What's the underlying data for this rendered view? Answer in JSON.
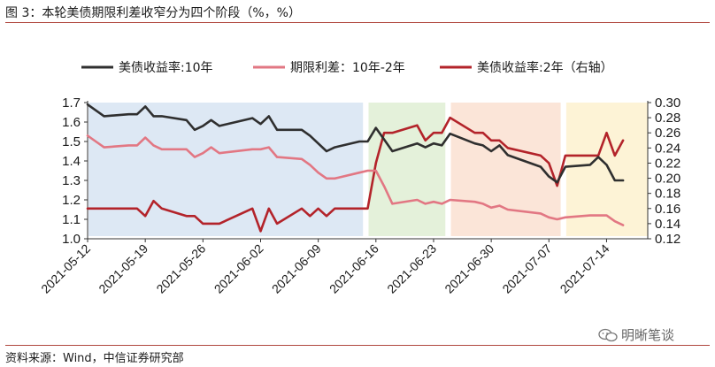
{
  "header": {
    "title": "图 3：本轮美债期限利差收窄分为四个阶段（%，%）"
  },
  "footer": {
    "source": "资料来源：Wind，中信证券研究部",
    "watermark": "明晰笔谈",
    "watermark_icon": "wechat-icon"
  },
  "chart_data": {
    "type": "line",
    "xlabel": "",
    "ylabel": "",
    "x_ticks": [
      "2021-05-12",
      "2021-05-19",
      "2021-05-26",
      "2021-06-02",
      "2021-06-09",
      "2021-06-16",
      "2021-06-23",
      "2021-06-30",
      "2021-07-07",
      "2021-07-14"
    ],
    "ylim_left": [
      1.0,
      1.7
    ],
    "yticks_left": [
      "1.0",
      "1.1",
      "1.2",
      "1.3",
      "1.4",
      "1.5",
      "1.6",
      "1.7"
    ],
    "ylim_right": [
      0.12,
      0.3
    ],
    "yticks_right": [
      "0.12",
      "0.14",
      "0.16",
      "0.18",
      "0.20",
      "0.22",
      "0.24",
      "0.26",
      "0.28",
      "0.30"
    ],
    "legend_position": "top",
    "phases": [
      {
        "start": "2021-05-12",
        "end": "2021-06-14",
        "color": "#dde8f4"
      },
      {
        "start": "2021-06-15",
        "end": "2021-06-24",
        "color": "#e4f1da"
      },
      {
        "start": "2021-06-25",
        "end": "2021-07-08",
        "color": "#fbe5d8"
      },
      {
        "start": "2021-07-09",
        "end": "2021-07-19",
        "color": "#fdf3d6"
      }
    ],
    "series": [
      {
        "name": "美债收益率:10年",
        "axis": "left",
        "color": "#2f2f2f",
        "dates": [
          "2021-05-12",
          "2021-05-13",
          "2021-05-14",
          "2021-05-17",
          "2021-05-18",
          "2021-05-19",
          "2021-05-20",
          "2021-05-21",
          "2021-05-24",
          "2021-05-25",
          "2021-05-26",
          "2021-05-27",
          "2021-05-28",
          "2021-06-01",
          "2021-06-02",
          "2021-06-03",
          "2021-06-04",
          "2021-06-07",
          "2021-06-08",
          "2021-06-09",
          "2021-06-10",
          "2021-06-11",
          "2021-06-14",
          "2021-06-15",
          "2021-06-16",
          "2021-06-17",
          "2021-06-18",
          "2021-06-21",
          "2021-06-22",
          "2021-06-23",
          "2021-06-24",
          "2021-06-25",
          "2021-06-28",
          "2021-06-29",
          "2021-06-30",
          "2021-07-01",
          "2021-07-02",
          "2021-07-06",
          "2021-07-07",
          "2021-07-08",
          "2021-07-09",
          "2021-07-12",
          "2021-07-13",
          "2021-07-14",
          "2021-07-15",
          "2021-07-16"
        ],
        "values": [
          1.69,
          1.66,
          1.63,
          1.64,
          1.64,
          1.68,
          1.63,
          1.63,
          1.61,
          1.56,
          1.58,
          1.61,
          1.58,
          1.62,
          1.59,
          1.63,
          1.56,
          1.56,
          1.53,
          1.49,
          1.45,
          1.47,
          1.5,
          1.5,
          1.57,
          1.51,
          1.45,
          1.49,
          1.47,
          1.49,
          1.48,
          1.54,
          1.49,
          1.48,
          1.45,
          1.48,
          1.43,
          1.37,
          1.32,
          1.29,
          1.37,
          1.38,
          1.42,
          1.38,
          1.3,
          1.3
        ]
      },
      {
        "name": "期限利差：10年-2年",
        "axis": "left",
        "color": "#e27783",
        "dates": [
          "2021-05-12",
          "2021-05-13",
          "2021-05-14",
          "2021-05-17",
          "2021-05-18",
          "2021-05-19",
          "2021-05-20",
          "2021-05-21",
          "2021-05-24",
          "2021-05-25",
          "2021-05-26",
          "2021-05-27",
          "2021-05-28",
          "2021-06-01",
          "2021-06-02",
          "2021-06-03",
          "2021-06-04",
          "2021-06-07",
          "2021-06-08",
          "2021-06-09",
          "2021-06-10",
          "2021-06-11",
          "2021-06-14",
          "2021-06-15",
          "2021-06-16",
          "2021-06-17",
          "2021-06-18",
          "2021-06-21",
          "2021-06-22",
          "2021-06-23",
          "2021-06-24",
          "2021-06-25",
          "2021-06-28",
          "2021-06-29",
          "2021-06-30",
          "2021-07-01",
          "2021-07-02",
          "2021-07-06",
          "2021-07-07",
          "2021-07-08",
          "2021-07-09",
          "2021-07-12",
          "2021-07-13",
          "2021-07-14",
          "2021-07-15",
          "2021-07-16"
        ],
        "values": [
          1.53,
          1.5,
          1.47,
          1.48,
          1.48,
          1.52,
          1.48,
          1.46,
          1.46,
          1.42,
          1.44,
          1.47,
          1.44,
          1.46,
          1.46,
          1.47,
          1.42,
          1.41,
          1.38,
          1.34,
          1.31,
          1.31,
          1.34,
          1.35,
          1.35,
          1.27,
          1.18,
          1.2,
          1.18,
          1.19,
          1.18,
          1.2,
          1.19,
          1.18,
          1.16,
          1.17,
          1.15,
          1.13,
          1.11,
          1.1,
          1.11,
          1.12,
          1.12,
          1.12,
          1.09,
          1.07
        ]
      },
      {
        "name": "美债收益率:2年（右轴）",
        "axis": "right",
        "color": "#b3232a",
        "dates": [
          "2021-05-12",
          "2021-05-13",
          "2021-05-14",
          "2021-05-17",
          "2021-05-18",
          "2021-05-19",
          "2021-05-20",
          "2021-05-21",
          "2021-05-24",
          "2021-05-25",
          "2021-05-26",
          "2021-05-27",
          "2021-05-28",
          "2021-06-01",
          "2021-06-02",
          "2021-06-03",
          "2021-06-04",
          "2021-06-07",
          "2021-06-08",
          "2021-06-09",
          "2021-06-10",
          "2021-06-11",
          "2021-06-14",
          "2021-06-15",
          "2021-06-16",
          "2021-06-17",
          "2021-06-18",
          "2021-06-21",
          "2021-06-22",
          "2021-06-23",
          "2021-06-24",
          "2021-06-25",
          "2021-06-28",
          "2021-06-29",
          "2021-06-30",
          "2021-07-01",
          "2021-07-02",
          "2021-07-06",
          "2021-07-07",
          "2021-07-08",
          "2021-07-09",
          "2021-07-12",
          "2021-07-13",
          "2021-07-14",
          "2021-07-15",
          "2021-07-16"
        ],
        "values": [
          0.16,
          0.16,
          0.16,
          0.16,
          0.16,
          0.15,
          0.17,
          0.16,
          0.15,
          0.15,
          0.14,
          0.14,
          0.14,
          0.16,
          0.13,
          0.16,
          0.14,
          0.16,
          0.15,
          0.16,
          0.15,
          0.16,
          0.16,
          0.16,
          0.22,
          0.26,
          0.26,
          0.27,
          0.25,
          0.26,
          0.26,
          0.28,
          0.26,
          0.26,
          0.25,
          0.25,
          0.24,
          0.23,
          0.22,
          0.19,
          0.23,
          0.23,
          0.23,
          0.26,
          0.23,
          0.25
        ]
      }
    ]
  }
}
